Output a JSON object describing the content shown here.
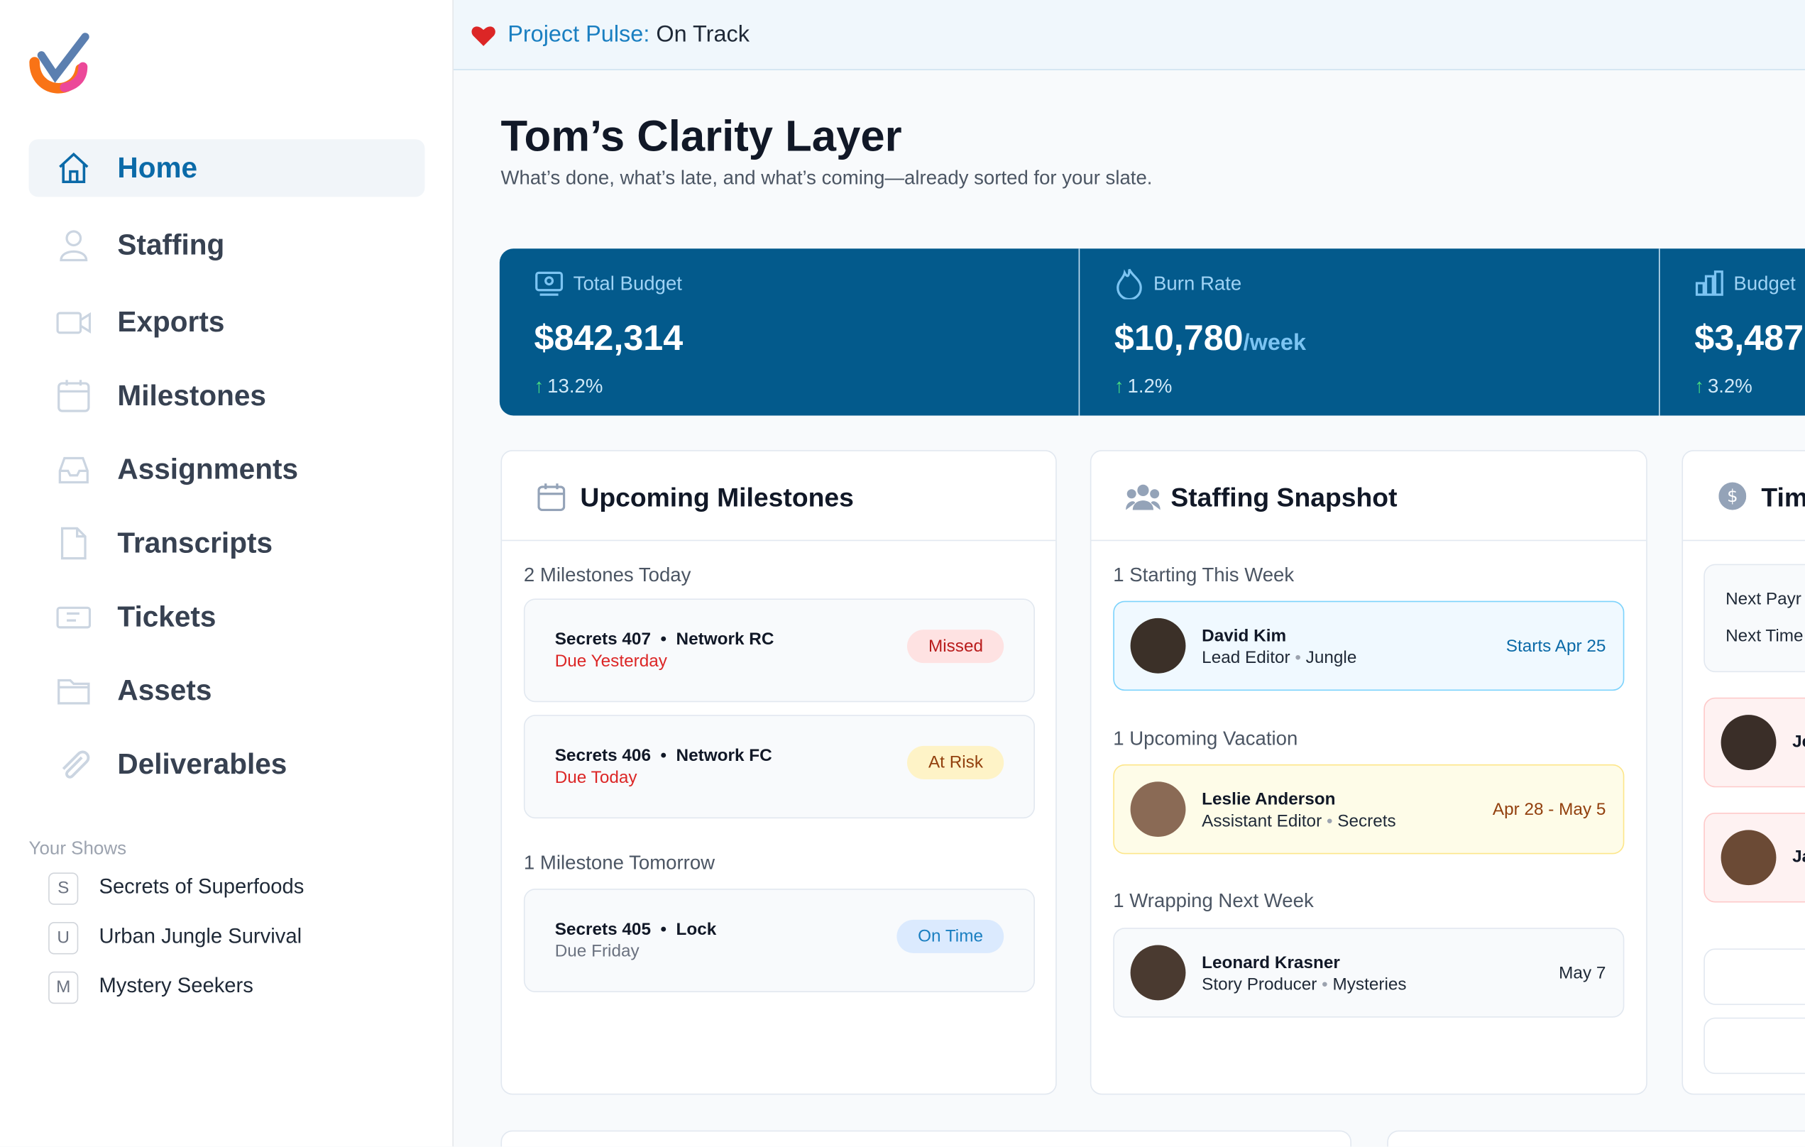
{
  "banner": {
    "label": "Project Pulse:",
    "status": "On Track"
  },
  "nav": {
    "items": [
      "Home",
      "Staffing",
      "Exports",
      "Milestones",
      "Assignments",
      "Transcripts",
      "Tickets",
      "Assets",
      "Deliverables"
    ]
  },
  "shows": {
    "heading": "Your Shows",
    "items": [
      {
        "initial": "S",
        "name": "Secrets of Superfoods"
      },
      {
        "initial": "U",
        "name": "Urban Jungle Survival"
      },
      {
        "initial": "M",
        "name": "Mystery Seekers"
      }
    ]
  },
  "header": {
    "title": "Tom’s Clarity Layer",
    "subtitle": "What’s done, what’s late, and what’s coming—already sorted for your slate."
  },
  "metrics": [
    {
      "label": "Total Budget",
      "value": "$842,314",
      "change": "13.2%"
    },
    {
      "label": "Burn Rate",
      "value": "$10,780",
      "unit": "/week",
      "change": "1.2%"
    },
    {
      "label": "Budget",
      "value": "$3,487",
      "change": "3.2%"
    }
  ],
  "milestones": {
    "title": "Upcoming Milestones",
    "groups": [
      {
        "heading": "2 Milestones Today",
        "items": [
          {
            "episode": "Secrets 407",
            "step": "Network RC",
            "due": "Due Yesterday",
            "status": "Missed"
          },
          {
            "episode": "Secrets 406",
            "step": "Network FC",
            "due": "Due Today",
            "status": "At Risk"
          }
        ]
      },
      {
        "heading": "1 Milestone Tomorrow",
        "items": [
          {
            "episode": "Secrets 405",
            "step": "Lock",
            "due": "Due Friday",
            "status": "On Time"
          }
        ]
      }
    ]
  },
  "staffing": {
    "title": "Staffing Snapshot",
    "groups": [
      {
        "heading": "1 Starting This Week",
        "name": "David Kim",
        "role": "Lead Editor",
        "show": "Jungle",
        "date": "Starts Apr 25"
      },
      {
        "heading": "1 Upcoming Vacation",
        "name": "Leslie Anderson",
        "role": "Assistant Editor",
        "show": "Secrets",
        "date": "Apr 28 - May 5"
      },
      {
        "heading": "1 Wrapping Next Week",
        "name": "Leonard Krasner",
        "role": "Story Producer",
        "show": "Mysteries",
        "date": "May 7"
      }
    ]
  },
  "third": {
    "title": "Tim",
    "rows": [
      "Next Payr",
      "Next Time"
    ],
    "people": [
      "Je",
      "Ja"
    ]
  }
}
